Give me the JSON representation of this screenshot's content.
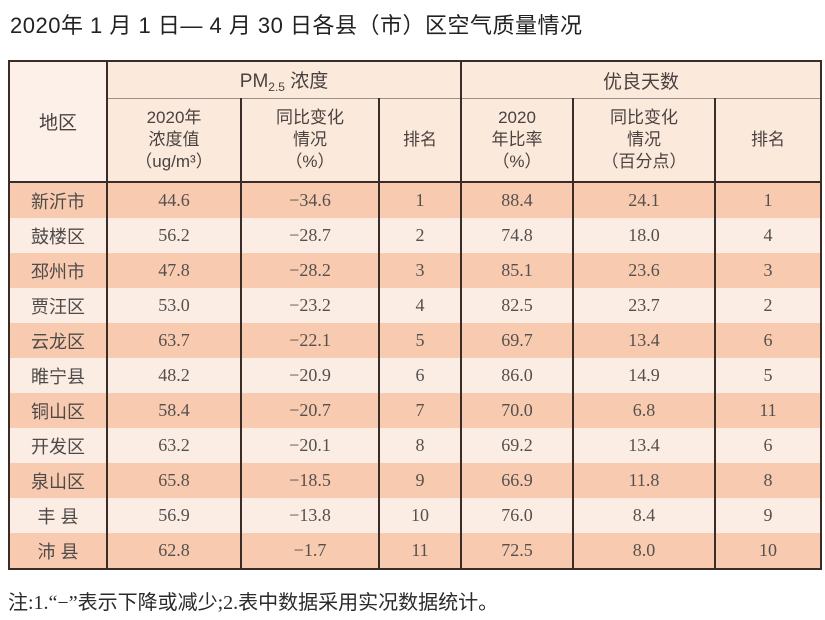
{
  "title": "2020年 1 月 1 日— 4 月 30 日各县（市）区空气质量情况",
  "colors": {
    "border_dark": "#3a2c27",
    "row_peach": "#f8cbb0",
    "row_cream": "#fcede4",
    "header_bg": "#fbe9dc",
    "thin_rule": "#9b8f89"
  },
  "table": {
    "corner_header": "地区",
    "pm_group": {
      "prefix": "PM",
      "sub": "2.5",
      "suffix": " 浓度"
    },
    "good_group": "优良天数",
    "sub_headers": {
      "pm_value": "2020年\n浓度值\n（ug/m³）",
      "pm_change": "同比变化\n情况\n（%）",
      "pm_rank": "排名",
      "good_ratio": "2020\n年比率\n（%）",
      "good_change": "同比变化\n情况\n（百分点）",
      "good_rank": "排名"
    },
    "rows": [
      {
        "region": "新沂市",
        "pm_value": "44.6",
        "pm_change": "−34.6",
        "pm_rank": "1",
        "good_ratio": "88.4",
        "good_change": "24.1",
        "good_rank": "1"
      },
      {
        "region": "鼓楼区",
        "pm_value": "56.2",
        "pm_change": "−28.7",
        "pm_rank": "2",
        "good_ratio": "74.8",
        "good_change": "18.0",
        "good_rank": "4"
      },
      {
        "region": "邳州市",
        "pm_value": "47.8",
        "pm_change": "−28.2",
        "pm_rank": "3",
        "good_ratio": "85.1",
        "good_change": "23.6",
        "good_rank": "3"
      },
      {
        "region": "贾汪区",
        "pm_value": "53.0",
        "pm_change": "−23.2",
        "pm_rank": "4",
        "good_ratio": "82.5",
        "good_change": "23.7",
        "good_rank": "2"
      },
      {
        "region": "云龙区",
        "pm_value": "63.7",
        "pm_change": "−22.1",
        "pm_rank": "5",
        "good_ratio": "69.7",
        "good_change": "13.4",
        "good_rank": "6"
      },
      {
        "region": "睢宁县",
        "pm_value": "48.2",
        "pm_change": "−20.9",
        "pm_rank": "6",
        "good_ratio": "86.0",
        "good_change": "14.9",
        "good_rank": "5"
      },
      {
        "region": "铜山区",
        "pm_value": "58.4",
        "pm_change": "−20.7",
        "pm_rank": "7",
        "good_ratio": "70.0",
        "good_change": "6.8",
        "good_rank": "11"
      },
      {
        "region": "开发区",
        "pm_value": "63.2",
        "pm_change": "−20.1",
        "pm_rank": "8",
        "good_ratio": "69.2",
        "good_change": "13.4",
        "good_rank": "6"
      },
      {
        "region": "泉山区",
        "pm_value": "65.8",
        "pm_change": "−18.5",
        "pm_rank": "9",
        "good_ratio": "66.9",
        "good_change": "11.8",
        "good_rank": "8"
      },
      {
        "region": "丰 县",
        "pm_value": "56.9",
        "pm_change": "−13.8",
        "pm_rank": "10",
        "good_ratio": "76.0",
        "good_change": "8.4",
        "good_rank": "9"
      },
      {
        "region": "沛 县",
        "pm_value": "62.8",
        "pm_change": "−1.7",
        "pm_rank": "11",
        "good_ratio": "72.5",
        "good_change": "8.0",
        "good_rank": "10"
      }
    ]
  },
  "note": "注:1.“−”表示下降或减少;2.表中数据采用实况数据统计。"
}
